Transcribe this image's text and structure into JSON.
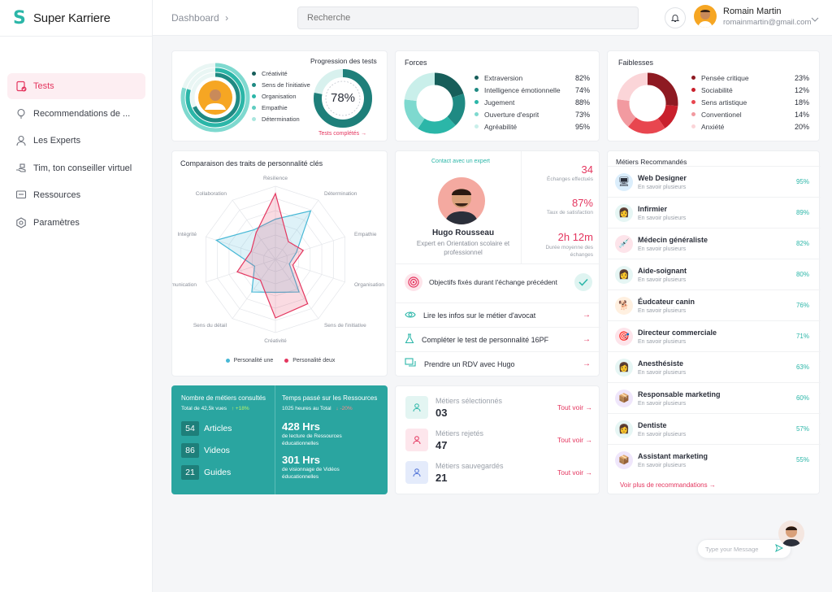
{
  "app": {
    "name": "Super Karriere"
  },
  "nav": [
    {
      "label": "Tests",
      "icon": "clipboard-check-icon"
    },
    {
      "label": "Recommendations de ...",
      "icon": "lightbulb-icon"
    },
    {
      "label": "Les Experts",
      "icon": "person-icon"
    },
    {
      "label": "Tim, ton conseiller virtuel",
      "icon": "hand-icon"
    },
    {
      "label": "Ressources",
      "icon": "chat-box-icon"
    },
    {
      "label": "Paramètres",
      "icon": "hexagon-gear-icon"
    }
  ],
  "topbar": {
    "breadcrumb": "Dashboard",
    "search_placeholder": "Recherche",
    "user_name": "Romain Martin",
    "user_email": "romainmartin@gmail.com"
  },
  "progression": {
    "title": "Progression des tests",
    "traits": [
      "Créativité",
      "Sens de l'initiative",
      "Organisation",
      "Empathie",
      "Détermination"
    ],
    "percent_label": "78%",
    "percent": 0.78,
    "link": "Tests complétés →"
  },
  "forces": {
    "title": "Forces",
    "items": [
      {
        "label": "Extraversion",
        "pct": "82%",
        "color": "#175e5a"
      },
      {
        "label": "Intelligence émotionnelle",
        "pct": "74%",
        "color": "#1f8a83"
      },
      {
        "label": "Jugement",
        "pct": "88%",
        "color": "#2bb6a8"
      },
      {
        "label": "Ouverture d'esprit",
        "pct": "73%",
        "color": "#7ed9cf"
      },
      {
        "label": "Agréabilité",
        "pct": "95%",
        "color": "#c9efea"
      }
    ]
  },
  "faiblesses": {
    "title": "Faiblesses",
    "items": [
      {
        "label": "Pensée critique",
        "pct": "23%",
        "color": "#8e1a22"
      },
      {
        "label": "Sociabilité",
        "pct": "12%",
        "color": "#c9202c"
      },
      {
        "label": "Sens artistique",
        "pct": "18%",
        "color": "#e8464f"
      },
      {
        "label": "Conventionel",
        "pct": "14%",
        "color": "#f29aa0"
      },
      {
        "label": "Anxiété",
        "pct": "20%",
        "color": "#fbd5d8"
      }
    ]
  },
  "radar": {
    "title": "Comparaison des traits de personnalité clés",
    "axes": [
      "Résilience",
      "Détermination",
      "Empathie",
      "Organisation",
      "Sens de l'initiative",
      "Créativité",
      "Sens du détail",
      "Communication",
      "Intégrité",
      "Collaboration"
    ],
    "series": [
      {
        "name": "Personalité une",
        "color": "#47b8d6",
        "values": [
          0.55,
          0.82,
          0.3,
          0.2,
          0.55,
          0.45,
          0.55,
          0.3,
          0.85,
          0.5
        ]
      },
      {
        "name": "Personalité deux",
        "color": "#e4365f",
        "values": [
          0.9,
          0.3,
          0.4,
          0.25,
          0.75,
          0.8,
          0.35,
          0.55,
          0.35,
          0.45
        ]
      }
    ]
  },
  "expert": {
    "contact": "Contact avec un expert",
    "name": "Hugo Rousseau",
    "role": "Expert en Orientation scolaire et professionnel",
    "stats": [
      {
        "value": "34",
        "label": "Échanges effectués"
      },
      {
        "value": "87%",
        "label": "Taux de satisfaction"
      },
      {
        "value": "2h 12m",
        "label": "Durée moyenne des échanges"
      }
    ],
    "goal": "Objectifs fixés durant l'échange précédent",
    "actions": [
      {
        "label": "Lire les infos sur le métier d'avocat",
        "icon": "eye-icon"
      },
      {
        "label": "Compléter le test de personnalité 16PF",
        "icon": "flask-icon"
      },
      {
        "label": "Prendre un RDV avec Hugo",
        "icon": "chat-bubbles-icon"
      }
    ]
  },
  "metiers": {
    "title": "Métiers Recommandés",
    "sub": "En savoir plusieurs",
    "items": [
      {
        "title": "Web Designer",
        "pct": "95%",
        "bg": "#dbeefc",
        "glyph": "🖥"
      },
      {
        "title": "Infirmier",
        "pct": "89%",
        "bg": "#e6f6f4",
        "glyph": "👩"
      },
      {
        "title": "Médecin généraliste",
        "pct": "82%",
        "bg": "#fde4ea",
        "glyph": "💉"
      },
      {
        "title": "Aide-soignant",
        "pct": "80%",
        "bg": "#e6f6f4",
        "glyph": "👩"
      },
      {
        "title": "Éudcateur canin",
        "pct": "76%",
        "bg": "#fff0e0",
        "glyph": "🐕"
      },
      {
        "title": "Directeur commerciale",
        "pct": "71%",
        "bg": "#fde4ea",
        "glyph": "🎯"
      },
      {
        "title": "Anesthésiste",
        "pct": "63%",
        "bg": "#e6f6f4",
        "glyph": "👩"
      },
      {
        "title": "Responsable marketing",
        "pct": "60%",
        "bg": "#efe6fb",
        "glyph": "📦"
      },
      {
        "title": "Dentiste",
        "pct": "57%",
        "bg": "#e6f6f4",
        "glyph": "👩"
      },
      {
        "title": "Assistant marketing",
        "pct": "55%",
        "bg": "#efe6fb",
        "glyph": "📦"
      }
    ],
    "more": "Voir plus de recommandations →"
  },
  "stats_teal": {
    "left_title": "Nombre de métiers consultés",
    "left_sub": "Total de 42,5k vues",
    "left_delta": "↑ +18%",
    "rows": [
      {
        "n": "54",
        "label": "Articles"
      },
      {
        "n": "86",
        "label": "Videos"
      },
      {
        "n": "21",
        "label": "Guides"
      }
    ],
    "right_title": "Temps passé sur les Ressources",
    "right_sub": "1025 heures au Total",
    "right_delta": "↓ -20%",
    "r1_val": "428 Hrs",
    "r1_label": "de lecture de Ressources éducationnelles",
    "r2_val": "301 Hrs",
    "r2_label": "de visionnage de Vidéos éducationnelles"
  },
  "status": [
    {
      "label": "Métiers sélectionnés",
      "value": "03",
      "link": "Tout voir →",
      "bg": "#e3f5f2",
      "color": "#2bb6a8"
    },
    {
      "label": "Métiers rejetés",
      "value": "47",
      "link": "Tout voir →",
      "bg": "#fde6ec",
      "color": "#e4365f"
    },
    {
      "label": "Métiers sauvegardés",
      "value": "21",
      "link": "Tout voir →",
      "bg": "#e4ebfb",
      "color": "#4b6fd6"
    }
  ],
  "chat": {
    "placeholder": "Type your Message"
  }
}
